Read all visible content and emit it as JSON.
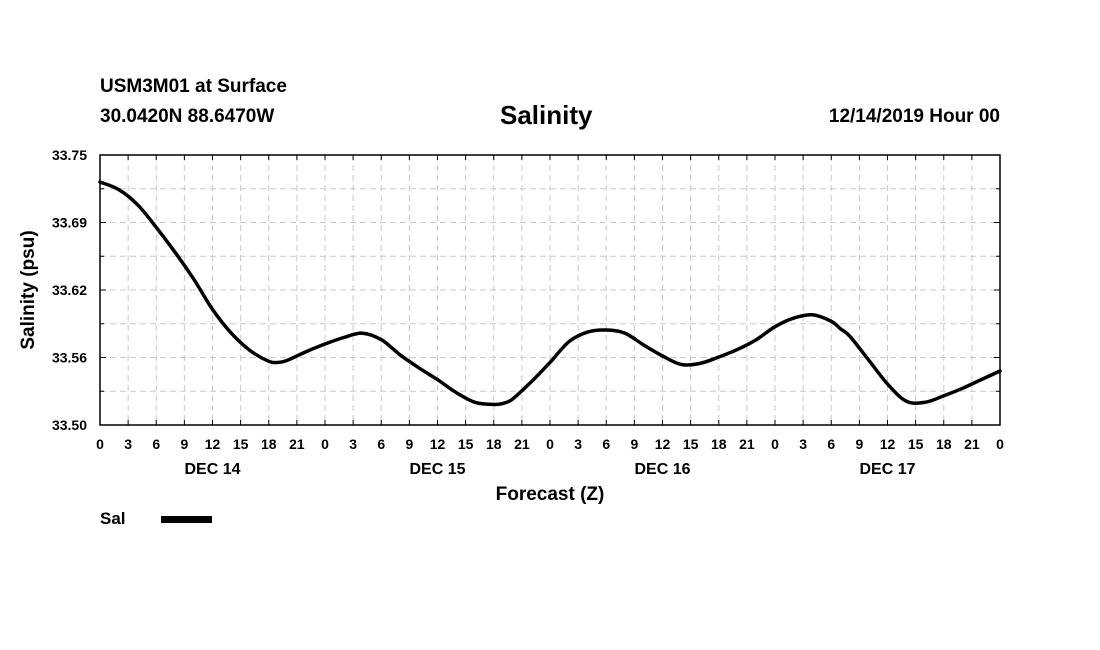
{
  "header": {
    "station": "USM3M01 at Surface",
    "coords": "30.0420N 88.6470W",
    "title": "Salinity",
    "datetime": "12/14/2019 Hour 00"
  },
  "legend": {
    "label": "Sal"
  },
  "chart_data": {
    "type": "line",
    "title": "Salinity",
    "xlabel": "Forecast (Z)",
    "ylabel": "Salinity (psu)",
    "ylim": [
      33.5,
      33.75
    ],
    "xlim": [
      0,
      96
    ],
    "yticks": [
      "33.50",
      "33.56",
      "33.62",
      "33.69",
      "33.75"
    ],
    "xtick_labels": [
      "0",
      "3",
      "6",
      "9",
      "12",
      "15",
      "18",
      "21",
      "0",
      "3",
      "6",
      "9",
      "12",
      "15",
      "18",
      "21",
      "0",
      "3",
      "6",
      "9",
      "12",
      "15",
      "18",
      "21",
      "0",
      "3",
      "6",
      "9",
      "12",
      "15",
      "18",
      "21",
      "0"
    ],
    "day_labels": [
      "DEC 14",
      "DEC 15",
      "DEC 16",
      "DEC 17"
    ],
    "grid": true,
    "legend_position": "bottom-left",
    "series": [
      {
        "name": "Sal",
        "color": "#000000",
        "x": [
          0,
          2,
          4,
          6,
          8,
          10,
          12,
          14,
          16,
          18,
          19,
          20,
          22,
          24,
          26,
          28,
          30,
          32,
          34,
          36,
          38,
          40,
          42,
          43,
          44,
          46,
          48,
          50,
          52,
          54,
          56,
          58,
          60,
          62,
          64,
          66,
          68,
          70,
          72,
          74,
          76,
          78,
          79,
          80,
          82,
          84,
          86,
          88,
          90,
          92,
          94,
          96
        ],
        "y": [
          33.725,
          33.718,
          33.704,
          33.683,
          33.66,
          33.635,
          33.607,
          33.585,
          33.569,
          33.559,
          33.558,
          33.56,
          33.568,
          33.575,
          33.581,
          33.585,
          33.579,
          33.565,
          33.553,
          33.542,
          33.53,
          33.521,
          33.519,
          33.52,
          33.524,
          33.54,
          33.558,
          33.577,
          33.586,
          33.588,
          33.585,
          33.574,
          33.564,
          33.556,
          33.557,
          33.563,
          33.57,
          33.579,
          33.591,
          33.599,
          33.602,
          33.596,
          33.589,
          33.582,
          33.56,
          33.538,
          33.522,
          33.521,
          33.527,
          33.534,
          33.542,
          33.55
        ]
      }
    ]
  }
}
